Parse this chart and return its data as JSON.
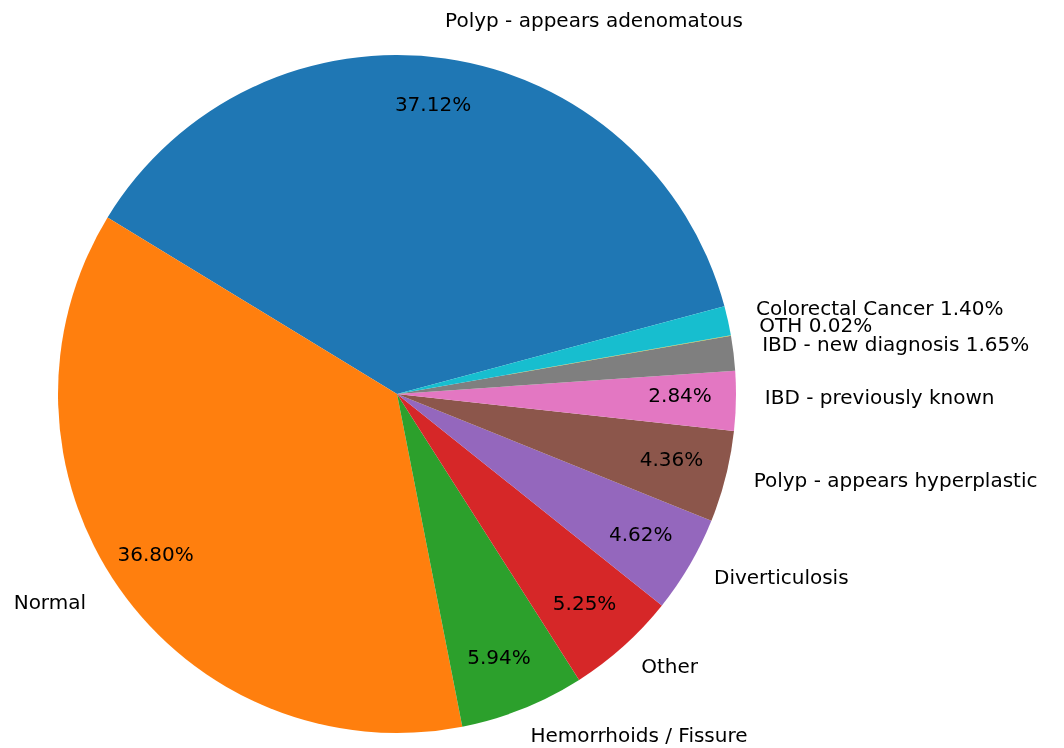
{
  "chart_data": {
    "type": "pie",
    "categories": [
      "Polyp - appears adenomatous",
      "Normal",
      "Hemorrhoids / Fissure",
      "Other",
      "Diverticulosis",
      "Polyp - appears hyperplastic",
      "IBD - previously known",
      "IBD - new diagnosis",
      "OTH",
      "Colorectal Cancer"
    ],
    "values": [
      37.12,
      36.8,
      5.94,
      5.25,
      4.62,
      4.36,
      2.84,
      1.65,
      0.02,
      1.4
    ],
    "colors": [
      "#1f77b4",
      "#ff7f0e",
      "#2ca02c",
      "#d62728",
      "#9467bd",
      "#8c564b",
      "#e377c2",
      "#7f7f7f",
      "#bcbd22",
      "#17becf"
    ],
    "value_labels": [
      "37.12%",
      "36.80%",
      "5.94%",
      "5.25%",
      "4.62%",
      "4.36%",
      "2.84%",
      "1.65%",
      "0.02%",
      "1.40%"
    ]
  }
}
